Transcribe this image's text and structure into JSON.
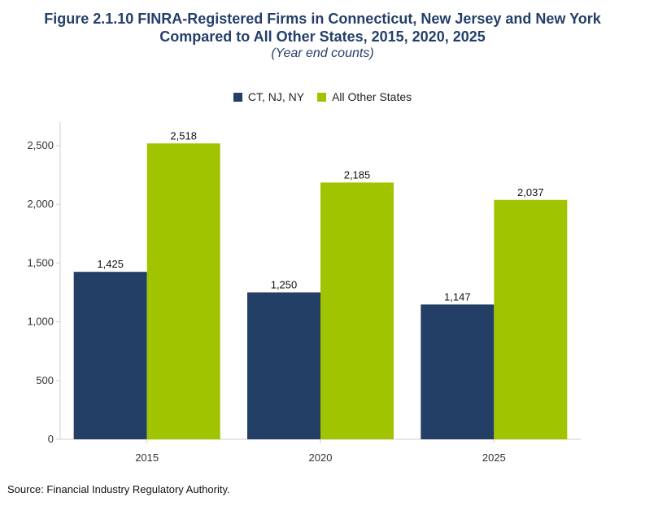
{
  "title_line1": "Figure 2.1.10 FINRA-Registered Firms in Connecticut, New Jersey and New York",
  "title_line2": "Compared to All Other States, 2015, 2020, 2025",
  "subtitle": "(Year end counts)",
  "source": "Source: Financial Industry Regulatory Authority.",
  "colors": {
    "series1": "#233f66",
    "series2": "#a1c400",
    "title": "#24406a"
  },
  "chart_data": {
    "type": "bar",
    "categories": [
      "2015",
      "2020",
      "2025"
    ],
    "series": [
      {
        "name": "CT, NJ, NY",
        "values": [
          1425,
          1250,
          1147
        ],
        "labels": [
          "1,425",
          "1,250",
          "1,147"
        ]
      },
      {
        "name": "All Other States",
        "values": [
          2518,
          2185,
          2037
        ],
        "labels": [
          "2,518",
          "2,185",
          "2,037"
        ]
      }
    ],
    "ylim": [
      0,
      2700
    ],
    "yticks": [
      0,
      500,
      1000,
      1500,
      2000,
      2500
    ],
    "ytick_labels": [
      "0",
      "500",
      "1,000",
      "1,500",
      "2,000",
      "2,500"
    ],
    "legend_position": "top-center",
    "grid": false
  }
}
